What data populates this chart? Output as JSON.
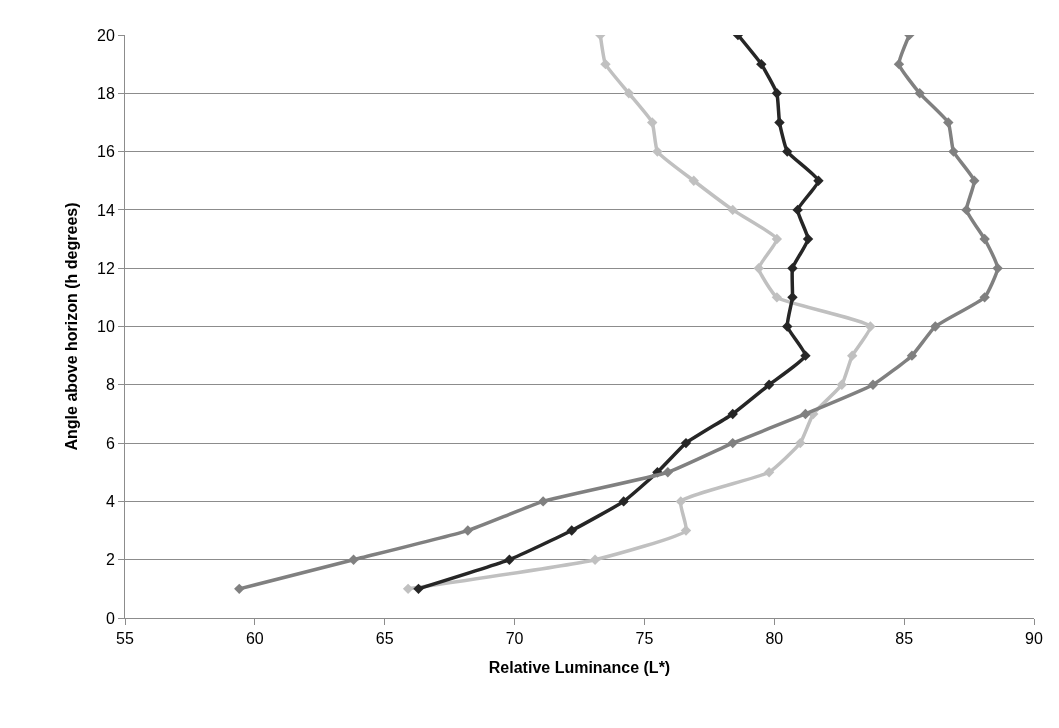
{
  "chart_data": {
    "type": "line",
    "xlabel": "Relative Luminance (L*)",
    "ylabel": "Angle above horizon (h degrees)",
    "xlim": [
      55,
      90
    ],
    "xticks": [
      55,
      60,
      65,
      70,
      75,
      80,
      85,
      90
    ],
    "ylim": [
      0,
      20
    ],
    "yticks": [
      0,
      2,
      4,
      6,
      8,
      10,
      12,
      14,
      16,
      18,
      20
    ],
    "grid": "y",
    "marker": "diamond",
    "line_style": "solid",
    "series": [
      {
        "color": "#c0c0c0",
        "x": [
          65.9,
          73.1,
          76.6,
          76.4,
          79.8,
          81.0,
          81.5,
          82.6,
          83.0,
          83.7,
          80.1,
          79.4,
          80.1,
          78.4,
          76.9,
          75.5,
          75.3,
          74.4,
          73.5,
          73.3
        ],
        "values": [
          1,
          2,
          3,
          4,
          5,
          6,
          7,
          8,
          9,
          10,
          11,
          12,
          13,
          14,
          15,
          16,
          17,
          18,
          19,
          20
        ]
      },
      {
        "color": "#262626",
        "x": [
          66.3,
          69.8,
          72.2,
          74.2,
          75.5,
          76.6,
          78.4,
          79.8,
          81.2,
          80.5,
          80.7,
          80.7,
          81.3,
          80.9,
          81.7,
          80.5,
          80.2,
          80.1,
          79.5,
          78.6
        ],
        "values": [
          1,
          2,
          3,
          4,
          5,
          6,
          7,
          8,
          9,
          10,
          11,
          12,
          13,
          14,
          15,
          16,
          17,
          18,
          19,
          20
        ]
      },
      {
        "color": "#808080",
        "x": [
          59.4,
          63.8,
          68.2,
          71.1,
          75.9,
          78.4,
          81.2,
          83.8,
          85.3,
          86.2,
          88.1,
          88.6,
          88.1,
          87.4,
          87.7,
          86.9,
          86.7,
          85.6,
          84.8,
          85.2
        ],
        "values": [
          1,
          2,
          3,
          4,
          5,
          6,
          7,
          8,
          9,
          10,
          11,
          12,
          13,
          14,
          15,
          16,
          17,
          18,
          19,
          20
        ]
      }
    ]
  }
}
